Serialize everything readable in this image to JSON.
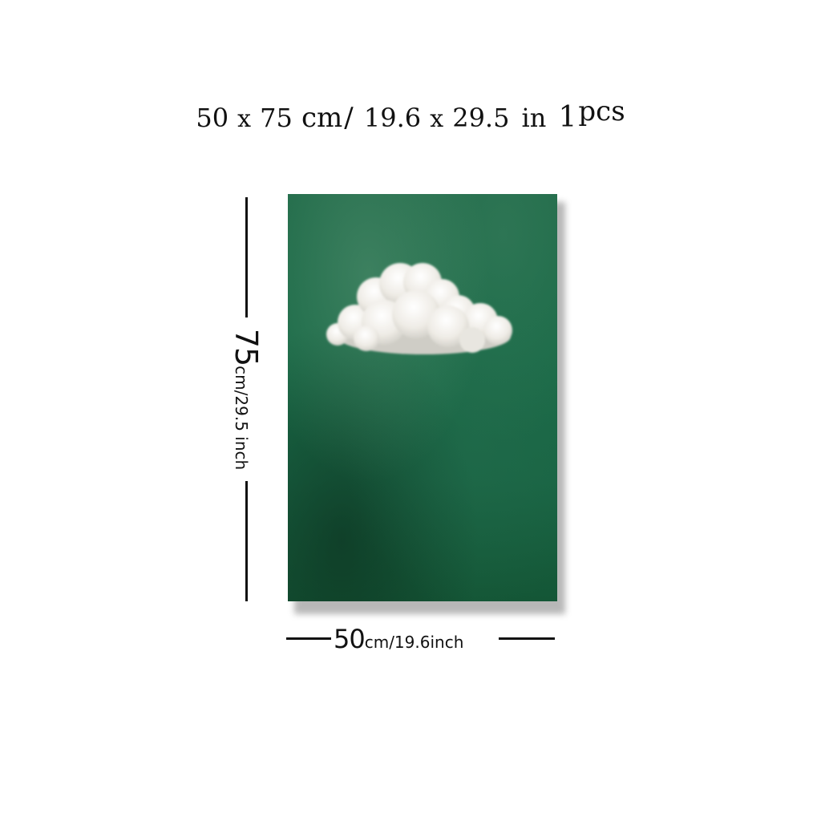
{
  "title": {
    "width": "50",
    "x1": "x",
    "height": "75",
    "unit_cm": "cm",
    "separator": "/",
    "width_in": "19.6",
    "x2": "x",
    "height_in": "29.5",
    "unit_in": "in",
    "count": "1",
    "count_unit": "pcs"
  },
  "dimension_height": {
    "value": "75",
    "unit": "cm/29.5 inch"
  },
  "dimension_width": {
    "value": "50",
    "unit": "cm/19.6inch"
  },
  "artwork": {
    "subject": "white cloud",
    "background_color": "#1b6a47",
    "cloud_color": "#f1efea"
  }
}
